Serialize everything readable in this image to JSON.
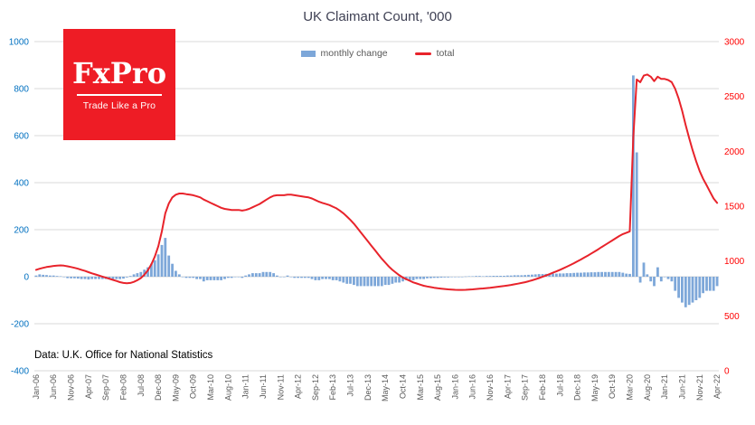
{
  "logo": {
    "brand": "FxPro",
    "tagline": "Trade Like a Pro",
    "bg_color": "#ee1c25",
    "text_color": "#ffffff"
  },
  "source": "Data: U.K. Office for National Statistics",
  "chart_data": {
    "type": "combo",
    "title": "UK Claimant Count, '000",
    "legend_position": "top",
    "grid": "horizontal",
    "grid_color": "#d9d9d9",
    "axis_text_color": "#595959",
    "x_tick_interval": 5,
    "left_axis": {
      "min": -400,
      "max": 1000,
      "ticks": [
        1000,
        800,
        600,
        400,
        200,
        0,
        -200,
        -400
      ],
      "color": "#0070c0"
    },
    "right_axis": {
      "min": 0,
      "max": 3000,
      "ticks": [
        3000,
        2500,
        2000,
        1500,
        1000,
        500,
        0
      ],
      "color": "#ff0000"
    },
    "x": [
      "Jan-06",
      "Feb-06",
      "Mar-06",
      "Apr-06",
      "May-06",
      "Jun-06",
      "Jul-06",
      "Aug-06",
      "Sep-06",
      "Oct-06",
      "Nov-06",
      "Dec-06",
      "Jan-07",
      "Feb-07",
      "Mar-07",
      "Apr-07",
      "May-07",
      "Jun-07",
      "Jul-07",
      "Aug-07",
      "Sep-07",
      "Oct-07",
      "Nov-07",
      "Dec-07",
      "Jan-08",
      "Feb-08",
      "Mar-08",
      "Apr-08",
      "May-08",
      "Jun-08",
      "Jul-08",
      "Aug-08",
      "Sep-08",
      "Oct-08",
      "Nov-08",
      "Dec-08",
      "Jan-09",
      "Feb-09",
      "Mar-09",
      "Apr-09",
      "May-09",
      "Jun-09",
      "Jul-09",
      "Aug-09",
      "Sep-09",
      "Oct-09",
      "Nov-09",
      "Dec-09",
      "Jan-10",
      "Feb-10",
      "Mar-10",
      "Apr-10",
      "May-10",
      "Jun-10",
      "Jul-10",
      "Aug-10",
      "Sep-10",
      "Oct-10",
      "Nov-10",
      "Dec-10",
      "Jan-11",
      "Feb-11",
      "Mar-11",
      "Apr-11",
      "May-11",
      "Jun-11",
      "Jul-11",
      "Aug-11",
      "Sep-11",
      "Oct-11",
      "Nov-11",
      "Dec-11",
      "Jan-12",
      "Feb-12",
      "Mar-12",
      "Apr-12",
      "May-12",
      "Jun-12",
      "Jul-12",
      "Aug-12",
      "Sep-12",
      "Oct-12",
      "Nov-12",
      "Dec-12",
      "Jan-13",
      "Feb-13",
      "Mar-13",
      "Apr-13",
      "May-13",
      "Jun-13",
      "Jul-13",
      "Aug-13",
      "Sep-13",
      "Oct-13",
      "Nov-13",
      "Dec-13",
      "Jan-14",
      "Feb-14",
      "Mar-14",
      "Apr-14",
      "May-14",
      "Jun-14",
      "Jul-14",
      "Aug-14",
      "Sep-14",
      "Oct-14",
      "Nov-14",
      "Dec-14",
      "Jan-15",
      "Feb-15",
      "Mar-15",
      "Apr-15",
      "May-15",
      "Jun-15",
      "Jul-15",
      "Aug-15",
      "Sep-15",
      "Oct-15",
      "Nov-15",
      "Dec-15",
      "Jan-16",
      "Feb-16",
      "Mar-16",
      "Apr-16",
      "May-16",
      "Jun-16",
      "Jul-16",
      "Aug-16",
      "Sep-16",
      "Oct-16",
      "Nov-16",
      "Dec-16",
      "Jan-17",
      "Feb-17",
      "Mar-17",
      "Apr-17",
      "May-17",
      "Jun-17",
      "Jul-17",
      "Aug-17",
      "Sep-17",
      "Oct-17",
      "Nov-17",
      "Dec-17",
      "Jan-18",
      "Feb-18",
      "Mar-18",
      "Apr-18",
      "May-18",
      "Jun-18",
      "Jul-18",
      "Aug-18",
      "Sep-18",
      "Oct-18",
      "Nov-18",
      "Dec-18",
      "Jan-19",
      "Feb-19",
      "Mar-19",
      "Apr-19",
      "May-19",
      "Jun-19",
      "Jul-19",
      "Aug-19",
      "Sep-19",
      "Oct-19",
      "Nov-19",
      "Dec-19",
      "Jan-20",
      "Feb-20",
      "Mar-20",
      "Apr-20",
      "May-20",
      "Jun-20",
      "Jul-20",
      "Aug-20",
      "Sep-20",
      "Oct-20",
      "Nov-20",
      "Dec-20",
      "Jan-21",
      "Feb-21",
      "Mar-21",
      "Apr-21",
      "May-21",
      "Jun-21",
      "Jul-21",
      "Aug-21",
      "Sep-21",
      "Oct-21",
      "Nov-21",
      "Dec-21",
      "Jan-22",
      "Feb-22",
      "Mar-22",
      "Apr-22"
    ],
    "series": [
      {
        "name": "monthly change",
        "type": "bar",
        "axis": "left",
        "color": "#7da7d9",
        "values": [
          5,
          10,
          8,
          7,
          5,
          5,
          3,
          2,
          -2,
          -6,
          -7,
          -7,
          -8,
          -10,
          -10,
          -12,
          -10,
          -10,
          -10,
          -10,
          -10,
          -10,
          -10,
          -10,
          -10,
          -8,
          -3,
          3,
          10,
          15,
          20,
          30,
          40,
          55,
          70,
          95,
          135,
          165,
          90,
          55,
          25,
          10,
          0,
          -5,
          -5,
          -5,
          -10,
          -10,
          -20,
          -15,
          -15,
          -15,
          -15,
          -15,
          -10,
          -5,
          -5,
          0,
          0,
          -5,
          5,
          10,
          15,
          15,
          15,
          20,
          20,
          20,
          15,
          5,
          0,
          0,
          5,
          0,
          -5,
          -5,
          -5,
          -5,
          -5,
          -10,
          -15,
          -15,
          -10,
          -10,
          -10,
          -15,
          -15,
          -20,
          -25,
          -30,
          -30,
          -35,
          -40,
          -40,
          -40,
          -40,
          -40,
          -40,
          -40,
          -40,
          -35,
          -35,
          -30,
          -25,
          -25,
          -20,
          -15,
          -15,
          -15,
          -10,
          -10,
          -10,
          -7,
          -6,
          -5,
          -5,
          -4,
          -3,
          -3,
          -2,
          -2,
          -1,
          0,
          1,
          2,
          2,
          3,
          3,
          2,
          3,
          3,
          4,
          4,
          4,
          4,
          5,
          5,
          6,
          6,
          6,
          7,
          8,
          9,
          10,
          11,
          11,
          12,
          12,
          13,
          13,
          14,
          14,
          15,
          15,
          16,
          17,
          17,
          18,
          18,
          19,
          19,
          20,
          20,
          20,
          20,
          20,
          20,
          20,
          17,
          13,
          12,
          856,
          529,
          -25,
          60,
          10,
          -20,
          -40,
          40,
          -20,
          0,
          -10,
          -20,
          -60,
          -90,
          -110,
          -130,
          -120,
          -110,
          -100,
          -90,
          -70,
          -60,
          -60,
          -60,
          -40
        ]
      },
      {
        "name": "total",
        "type": "line",
        "axis": "right",
        "color": "#e8232b",
        "values": [
          920,
          930,
          938,
          945,
          950,
          955,
          958,
          960,
          958,
          952,
          945,
          938,
          930,
          920,
          910,
          898,
          888,
          878,
          868,
          858,
          848,
          838,
          828,
          818,
          808,
          800,
          797,
          800,
          810,
          825,
          845,
          875,
          915,
          970,
          1040,
          1135,
          1270,
          1435,
          1525,
          1580,
          1605,
          1615,
          1615,
          1610,
          1605,
          1600,
          1590,
          1580,
          1560,
          1545,
          1530,
          1515,
          1500,
          1485,
          1475,
          1470,
          1465,
          1465,
          1465,
          1460,
          1465,
          1475,
          1490,
          1505,
          1520,
          1540,
          1560,
          1580,
          1595,
          1600,
          1600,
          1600,
          1605,
          1605,
          1600,
          1595,
          1590,
          1585,
          1580,
          1570,
          1555,
          1540,
          1530,
          1520,
          1510,
          1495,
          1480,
          1460,
          1435,
          1405,
          1375,
          1340,
          1300,
          1260,
          1220,
          1180,
          1140,
          1100,
          1060,
          1020,
          985,
          950,
          920,
          895,
          870,
          850,
          835,
          820,
          805,
          795,
          785,
          775,
          768,
          762,
          757,
          752,
          748,
          745,
          742,
          740,
          738,
          737,
          737,
          738,
          740,
          742,
          745,
          748,
          750,
          753,
          756,
          760,
          764,
          768,
          772,
          777,
          782,
          788,
          794,
          800,
          807,
          815,
          824,
          834,
          845,
          856,
          868,
          880,
          893,
          906,
          920,
          934,
          949,
          964,
          980,
          997,
          1014,
          1032,
          1050,
          1069,
          1088,
          1108,
          1128,
          1148,
          1168,
          1188,
          1208,
          1228,
          1245,
          1258,
          1270,
          2126,
          2655,
          2630,
          2690,
          2700,
          2680,
          2640,
          2680,
          2660,
          2660,
          2650,
          2630,
          2570,
          2480,
          2370,
          2240,
          2120,
          2010,
          1910,
          1820,
          1750,
          1690,
          1630,
          1570,
          1530
        ]
      }
    ]
  }
}
